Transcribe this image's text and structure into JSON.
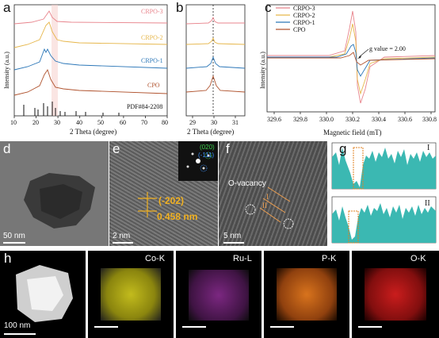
{
  "panels": {
    "a": {
      "label": "a",
      "xlabel": "2 Theta (degree)",
      "ylabel": "Intensity (a.u.)",
      "xticks": [
        "10",
        "20",
        "30",
        "40",
        "50",
        "60",
        "70",
        "80"
      ],
      "series": [
        {
          "name": "CRPO-3",
          "color": "#e8848c"
        },
        {
          "name": "CRPO-2",
          "color": "#e6b64a"
        },
        {
          "name": "CRPO-1",
          "color": "#2c77b8"
        },
        {
          "name": "CPO",
          "color": "#b0532e"
        }
      ],
      "ref_label": "PDF#84-2208"
    },
    "b": {
      "label": "b",
      "xlabel": "2 Theta (degree)",
      "xticks": [
        "29",
        "30",
        "31"
      ]
    },
    "c": {
      "label": "c",
      "xlabel": "Magnetic field (mT)",
      "ylabel": "Intensity (a.u.)",
      "xticks": [
        "329.6",
        "329.8",
        "330.0",
        "330.2",
        "330.4",
        "330.6",
        "330.8"
      ],
      "legend": [
        "CRPO-3",
        "CRPO-2",
        "CRPO-1",
        "CPO"
      ],
      "annotation": "g value = 2.00"
    },
    "d": {
      "label": "d",
      "scale": "50 nm"
    },
    "e": {
      "label": "e",
      "scale": "2 nm",
      "plane": "(-202)",
      "spacing": "0.458 nm",
      "fft1": "(020)",
      "fft2": "(-111)"
    },
    "f": {
      "label": "f",
      "scale": "5 nm",
      "defect": "O-vacancy",
      "m1": "I",
      "m2": "II"
    },
    "g": {
      "label": "g",
      "p1": "I",
      "p2": "II"
    },
    "h": {
      "label": "h",
      "scale": "100 nm",
      "maps": [
        "Co-K",
        "Ru-L",
        "P-K",
        "O-K"
      ]
    }
  },
  "colors": {
    "CRPO-3": "#e8848c",
    "CRPO-2": "#e6b64a",
    "CRPO-1": "#2c77b8",
    "CPO": "#b0532e",
    "teal": "#3bb8b2",
    "co_map": "#d8d020",
    "ru_map": "#c040c8",
    "p_map": "#f08020",
    "o_map": "#e02020"
  }
}
